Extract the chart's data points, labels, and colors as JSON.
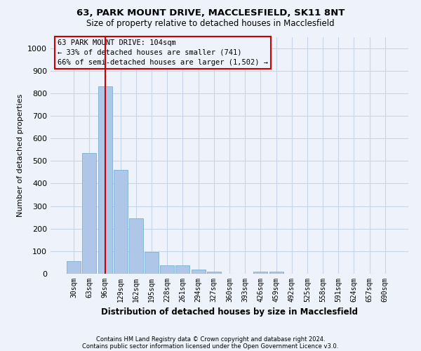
{
  "title_line1": "63, PARK MOUNT DRIVE, MACCLESFIELD, SK11 8NT",
  "title_line2": "Size of property relative to detached houses in Macclesfield",
  "xlabel": "Distribution of detached houses by size in Macclesfield",
  "ylabel": "Number of detached properties",
  "footnote1": "Contains HM Land Registry data © Crown copyright and database right 2024.",
  "footnote2": "Contains public sector information licensed under the Open Government Licence v3.0.",
  "bar_labels": [
    "30sqm",
    "63sqm",
    "96sqm",
    "129sqm",
    "162sqm",
    "195sqm",
    "228sqm",
    "261sqm",
    "294sqm",
    "327sqm",
    "360sqm",
    "393sqm",
    "426sqm",
    "459sqm",
    "492sqm",
    "525sqm",
    "558sqm",
    "591sqm",
    "624sqm",
    "657sqm",
    "690sqm"
  ],
  "bar_values": [
    55,
    535,
    830,
    460,
    245,
    97,
    36,
    36,
    20,
    10,
    0,
    0,
    10,
    10,
    0,
    0,
    0,
    0,
    0,
    0,
    0
  ],
  "bar_color": "#aec6e8",
  "bar_edge_color": "#7aafd4",
  "grid_color": "#c8d4e8",
  "bg_color": "#eef2fa",
  "vline_x": 2,
  "vline_color": "#cc0000",
  "annotation_text": "63 PARK MOUNT DRIVE: 104sqm\n← 33% of detached houses are smaller (741)\n66% of semi-detached houses are larger (1,502) →",
  "annotation_box_edge_color": "#cc0000",
  "ylim": [
    0,
    1050
  ],
  "yticks": [
    0,
    100,
    200,
    300,
    400,
    500,
    600,
    700,
    800,
    900,
    1000
  ]
}
